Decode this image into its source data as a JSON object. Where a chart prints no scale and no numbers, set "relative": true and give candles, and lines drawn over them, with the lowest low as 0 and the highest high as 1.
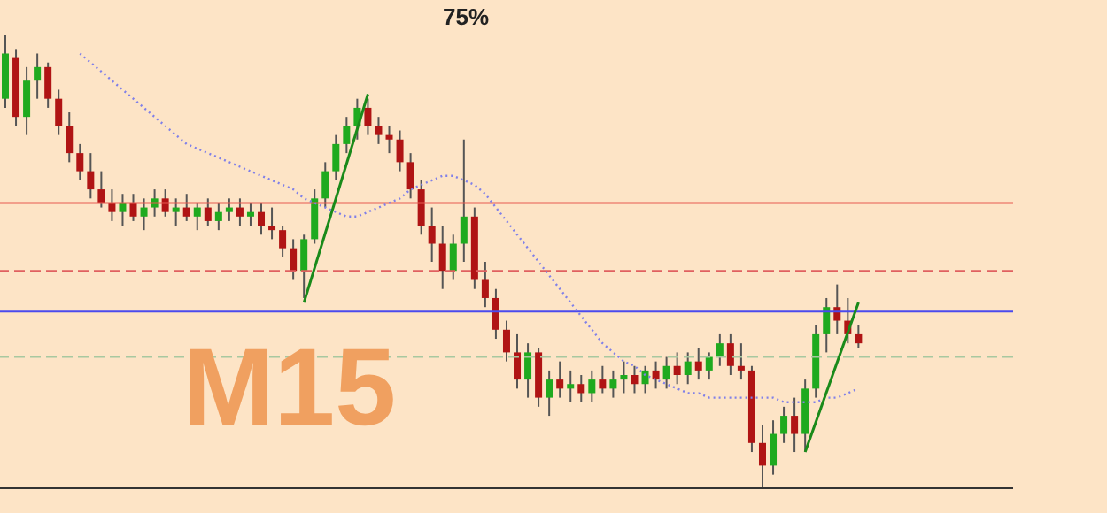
{
  "chart_data": {
    "type": "candlestick",
    "relative": true,
    "marker": "none",
    "categories": [
      null,
      null,
      null,
      null,
      null,
      null,
      null,
      null,
      null,
      null,
      null,
      null,
      null,
      null,
      null,
      null,
      null,
      null,
      null,
      null,
      null,
      null,
      null,
      null,
      null,
      null,
      null,
      null,
      null,
      null,
      null,
      null,
      null,
      null,
      null,
      null,
      null,
      null,
      null,
      null,
      null,
      null,
      null,
      null,
      null,
      null,
      null,
      null,
      null,
      null,
      null,
      null,
      null,
      null,
      null,
      null,
      null,
      null,
      null,
      null,
      null,
      null,
      null,
      null,
      null,
      null,
      null,
      null,
      null,
      null,
      null,
      null,
      null,
      null,
      null,
      null,
      null,
      null,
      null,
      null,
      null
    ],
    "ohlc": [
      [
        0.86,
        1.0,
        0.84,
        0.96
      ],
      [
        0.95,
        0.97,
        0.8,
        0.82
      ],
      [
        0.82,
        0.93,
        0.78,
        0.9
      ],
      [
        0.9,
        0.96,
        0.86,
        0.93
      ],
      [
        0.93,
        0.94,
        0.84,
        0.86
      ],
      [
        0.86,
        0.88,
        0.78,
        0.8
      ],
      [
        0.8,
        0.83,
        0.72,
        0.74
      ],
      [
        0.74,
        0.76,
        0.68,
        0.7
      ],
      [
        0.7,
        0.74,
        0.64,
        0.66
      ],
      [
        0.66,
        0.7,
        0.62,
        0.63
      ],
      [
        0.63,
        0.66,
        0.59,
        0.61
      ],
      [
        0.61,
        0.65,
        0.58,
        0.63
      ],
      [
        0.63,
        0.65,
        0.59,
        0.6
      ],
      [
        0.6,
        0.64,
        0.57,
        0.62
      ],
      [
        0.62,
        0.66,
        0.6,
        0.64
      ],
      [
        0.64,
        0.66,
        0.6,
        0.61
      ],
      [
        0.61,
        0.64,
        0.58,
        0.62
      ],
      [
        0.62,
        0.65,
        0.59,
        0.6
      ],
      [
        0.6,
        0.63,
        0.57,
        0.62
      ],
      [
        0.62,
        0.64,
        0.58,
        0.59
      ],
      [
        0.59,
        0.63,
        0.57,
        0.61
      ],
      [
        0.61,
        0.64,
        0.59,
        0.62
      ],
      [
        0.62,
        0.64,
        0.58,
        0.6
      ],
      [
        0.6,
        0.63,
        0.58,
        0.61
      ],
      [
        0.61,
        0.63,
        0.56,
        0.58
      ],
      [
        0.58,
        0.62,
        0.55,
        0.57
      ],
      [
        0.57,
        0.58,
        0.51,
        0.53
      ],
      [
        0.53,
        0.55,
        0.46,
        0.48
      ],
      [
        0.48,
        0.56,
        0.42,
        0.55
      ],
      [
        0.55,
        0.66,
        0.54,
        0.64
      ],
      [
        0.64,
        0.72,
        0.62,
        0.7
      ],
      [
        0.7,
        0.78,
        0.68,
        0.76
      ],
      [
        0.76,
        0.82,
        0.74,
        0.8
      ],
      [
        0.8,
        0.86,
        0.77,
        0.84
      ],
      [
        0.84,
        0.86,
        0.78,
        0.8
      ],
      [
        0.8,
        0.82,
        0.76,
        0.78
      ],
      [
        0.78,
        0.8,
        0.74,
        0.77
      ],
      [
        0.77,
        0.79,
        0.7,
        0.72
      ],
      [
        0.72,
        0.74,
        0.64,
        0.66
      ],
      [
        0.66,
        0.68,
        0.56,
        0.58
      ],
      [
        0.58,
        0.62,
        0.5,
        0.54
      ],
      [
        0.54,
        0.58,
        0.44,
        0.48
      ],
      [
        0.48,
        0.56,
        0.46,
        0.54
      ],
      [
        0.54,
        0.77,
        0.5,
        0.6
      ],
      [
        0.6,
        0.62,
        0.44,
        0.46
      ],
      [
        0.46,
        0.5,
        0.4,
        0.42
      ],
      [
        0.42,
        0.44,
        0.33,
        0.35
      ],
      [
        0.35,
        0.37,
        0.28,
        0.3
      ],
      [
        0.3,
        0.34,
        0.22,
        0.24
      ],
      [
        0.24,
        0.32,
        0.2,
        0.3
      ],
      [
        0.3,
        0.31,
        0.18,
        0.2
      ],
      [
        0.2,
        0.26,
        0.16,
        0.24
      ],
      [
        0.24,
        0.28,
        0.2,
        0.22
      ],
      [
        0.22,
        0.26,
        0.19,
        0.23
      ],
      [
        0.23,
        0.25,
        0.19,
        0.21
      ],
      [
        0.21,
        0.26,
        0.19,
        0.24
      ],
      [
        0.24,
        0.27,
        0.21,
        0.22
      ],
      [
        0.22,
        0.26,
        0.2,
        0.24
      ],
      [
        0.24,
        0.28,
        0.21,
        0.25
      ],
      [
        0.25,
        0.27,
        0.21,
        0.23
      ],
      [
        0.23,
        0.27,
        0.21,
        0.26
      ],
      [
        0.26,
        0.28,
        0.22,
        0.24
      ],
      [
        0.24,
        0.29,
        0.22,
        0.27
      ],
      [
        0.27,
        0.3,
        0.23,
        0.25
      ],
      [
        0.25,
        0.3,
        0.23,
        0.28
      ],
      [
        0.28,
        0.31,
        0.24,
        0.26
      ],
      [
        0.26,
        0.3,
        0.24,
        0.29
      ],
      [
        0.29,
        0.34,
        0.27,
        0.32
      ],
      [
        0.32,
        0.34,
        0.25,
        0.27
      ],
      [
        0.27,
        0.32,
        0.24,
        0.26
      ],
      [
        0.26,
        0.27,
        0.08,
        0.1
      ],
      [
        0.1,
        0.14,
        0.0,
        0.05
      ],
      [
        0.05,
        0.15,
        0.03,
        0.12
      ],
      [
        0.12,
        0.18,
        0.1,
        0.16
      ],
      [
        0.16,
        0.2,
        0.08,
        0.12
      ],
      [
        0.12,
        0.24,
        0.08,
        0.22
      ],
      [
        0.22,
        0.36,
        0.2,
        0.34
      ],
      [
        0.34,
        0.42,
        0.3,
        0.4
      ],
      [
        0.4,
        0.45,
        0.34,
        0.37
      ],
      [
        0.37,
        0.42,
        0.32,
        0.34
      ],
      [
        0.34,
        0.36,
        0.31,
        0.32
      ]
    ],
    "series": [
      {
        "type": "line",
        "color": "#8080e8",
        "line_style": "dotted",
        "values": [
          null,
          null,
          null,
          null,
          null,
          null,
          null,
          0.96,
          0.94,
          0.92,
          0.9,
          0.88,
          0.86,
          0.84,
          0.82,
          0.8,
          0.78,
          0.76,
          0.75,
          0.74,
          0.73,
          0.72,
          0.71,
          0.7,
          0.69,
          0.68,
          0.67,
          0.66,
          0.64,
          0.63,
          0.62,
          0.61,
          0.6,
          0.6,
          0.61,
          0.62,
          0.63,
          0.64,
          0.66,
          0.67,
          0.68,
          0.69,
          0.69,
          0.68,
          0.67,
          0.65,
          0.62,
          0.59,
          0.56,
          0.53,
          0.5,
          0.47,
          0.44,
          0.41,
          0.38,
          0.35,
          0.32,
          0.3,
          0.28,
          0.27,
          0.25,
          0.24,
          0.23,
          0.22,
          0.21,
          0.21,
          0.2,
          0.2,
          0.2,
          0.2,
          0.2,
          0.2,
          0.2,
          0.19,
          0.19,
          0.19,
          0.19,
          0.2,
          0.2,
          0.21,
          0.22
        ]
      },
      {
        "type": "line",
        "color": "#1a8a1a",
        "line_style": "solid",
        "values": [
          null,
          null,
          null,
          null,
          null,
          null,
          null,
          null,
          null,
          null,
          null,
          null,
          null,
          null,
          null,
          null,
          null,
          null,
          null,
          null,
          null,
          null,
          null,
          null,
          null,
          null,
          null,
          null,
          0.41,
          null,
          null,
          null,
          null,
          null,
          0.87,
          null,
          null,
          null,
          null,
          null,
          null,
          null,
          null,
          null,
          null,
          null,
          null,
          null,
          null,
          null,
          null,
          null,
          null,
          null,
          null,
          null,
          null,
          null,
          null,
          null,
          null,
          null,
          null,
          null,
          null,
          null,
          null,
          null,
          null,
          null,
          null,
          null,
          null,
          null,
          null,
          null,
          null,
          null,
          null,
          null,
          null
        ]
      },
      {
        "type": "line",
        "color": "#1a8a1a",
        "line_style": "solid",
        "values": [
          null,
          null,
          null,
          null,
          null,
          null,
          null,
          null,
          null,
          null,
          null,
          null,
          null,
          null,
          null,
          null,
          null,
          null,
          null,
          null,
          null,
          null,
          null,
          null,
          null,
          null,
          null,
          null,
          null,
          null,
          null,
          null,
          null,
          null,
          null,
          null,
          null,
          null,
          null,
          null,
          null,
          null,
          null,
          null,
          null,
          null,
          null,
          null,
          null,
          null,
          null,
          null,
          null,
          null,
          null,
          null,
          null,
          null,
          null,
          null,
          null,
          null,
          null,
          null,
          null,
          null,
          null,
          null,
          null,
          null,
          null,
          null,
          null,
          null,
          null,
          0.08,
          null,
          null,
          null,
          null,
          0.41
        ]
      }
    ],
    "ref_lines": [
      {
        "axis": "y",
        "value": 0.63,
        "color": "#e85a50",
        "line_style": "solid"
      },
      {
        "axis": "y",
        "value": 0.48,
        "color": "#e06060",
        "line_style": "dashed"
      },
      {
        "axis": "y",
        "value": 0.39,
        "color": "#4a4aee",
        "line_style": "solid"
      },
      {
        "axis": "y",
        "value": 0.29,
        "color": "#a8c8a0",
        "line_style": "dashed"
      }
    ],
    "annotations": [
      "75%",
      "M15"
    ]
  }
}
